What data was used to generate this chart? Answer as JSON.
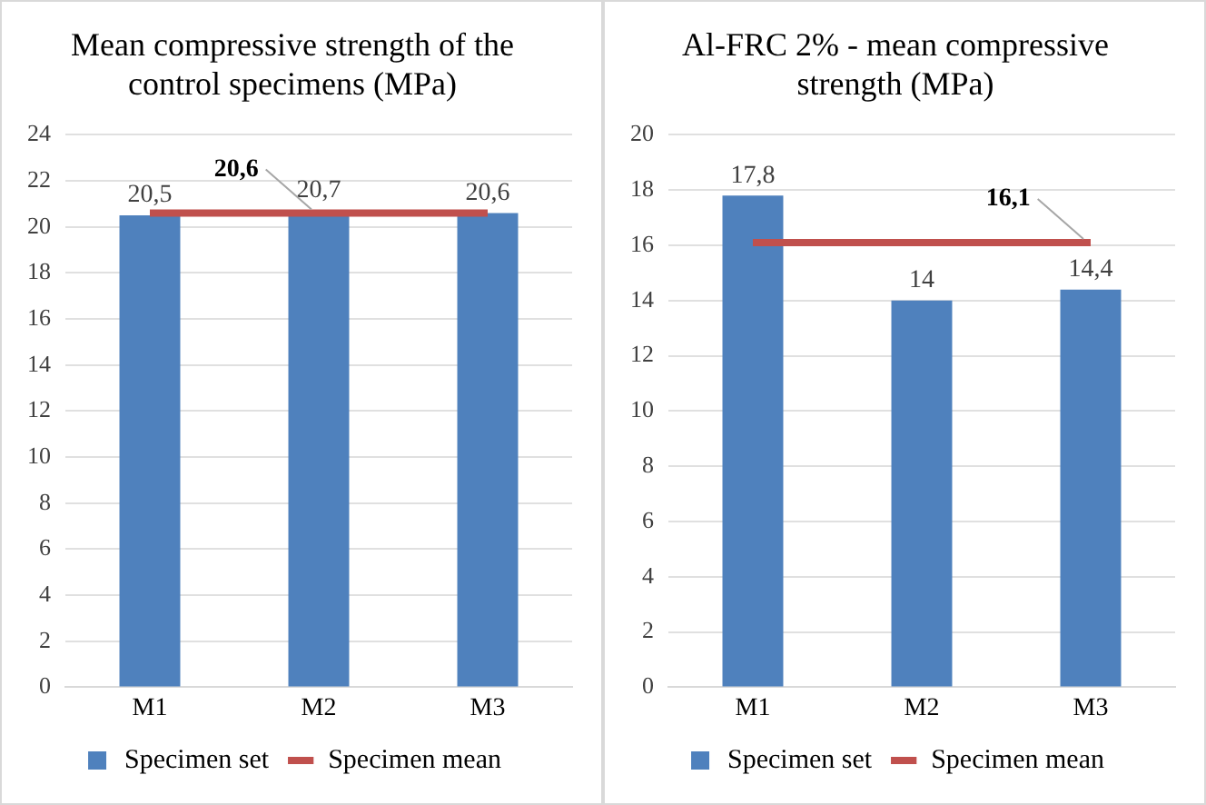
{
  "chart_data": [
    {
      "type": "bar",
      "title": "Mean compressive strength of the control specimens (MPa)",
      "categories": [
        "M1",
        "M2",
        "M3"
      ],
      "series": [
        {
          "name": "Specimen set",
          "color": "#4f81bd",
          "values": [
            20.5,
            20.7,
            20.6
          ],
          "value_labels": [
            "20,5",
            "20,7",
            "20,6"
          ]
        },
        {
          "name": "Specimen mean",
          "type": "line",
          "color": "#c0504d",
          "values": [
            20.6,
            20.6,
            20.6
          ]
        }
      ],
      "ylim": [
        0,
        24
      ],
      "yticks": [
        0,
        2,
        4,
        6,
        8,
        10,
        12,
        14,
        16,
        18,
        20,
        22,
        24
      ],
      "grid": "y",
      "legend": "bottom",
      "marker": "none",
      "annotations": [
        {
          "text": "20,6",
          "x": "M2",
          "y": 20.6
        }
      ]
    },
    {
      "type": "bar",
      "title": "Al-FRC 2% - mean compressive strength (MPa)",
      "categories": [
        "M1",
        "M2",
        "M3"
      ],
      "series": [
        {
          "name": "Specimen set",
          "color": "#4f81bd",
          "values": [
            17.8,
            14,
            14.4
          ],
          "value_labels": [
            "17,8",
            "14",
            "14,4"
          ]
        },
        {
          "name": "Specimen mean",
          "type": "line",
          "color": "#c0504d",
          "values": [
            16.1,
            16.1,
            16.1
          ]
        }
      ],
      "ylim": [
        0,
        20
      ],
      "yticks": [
        0,
        2,
        4,
        6,
        8,
        10,
        12,
        14,
        16,
        18,
        20
      ],
      "grid": "y",
      "legend": "bottom",
      "marker": "none",
      "annotations": [
        {
          "text": "16,1",
          "x": "M3",
          "y": 16.1
        }
      ]
    }
  ]
}
